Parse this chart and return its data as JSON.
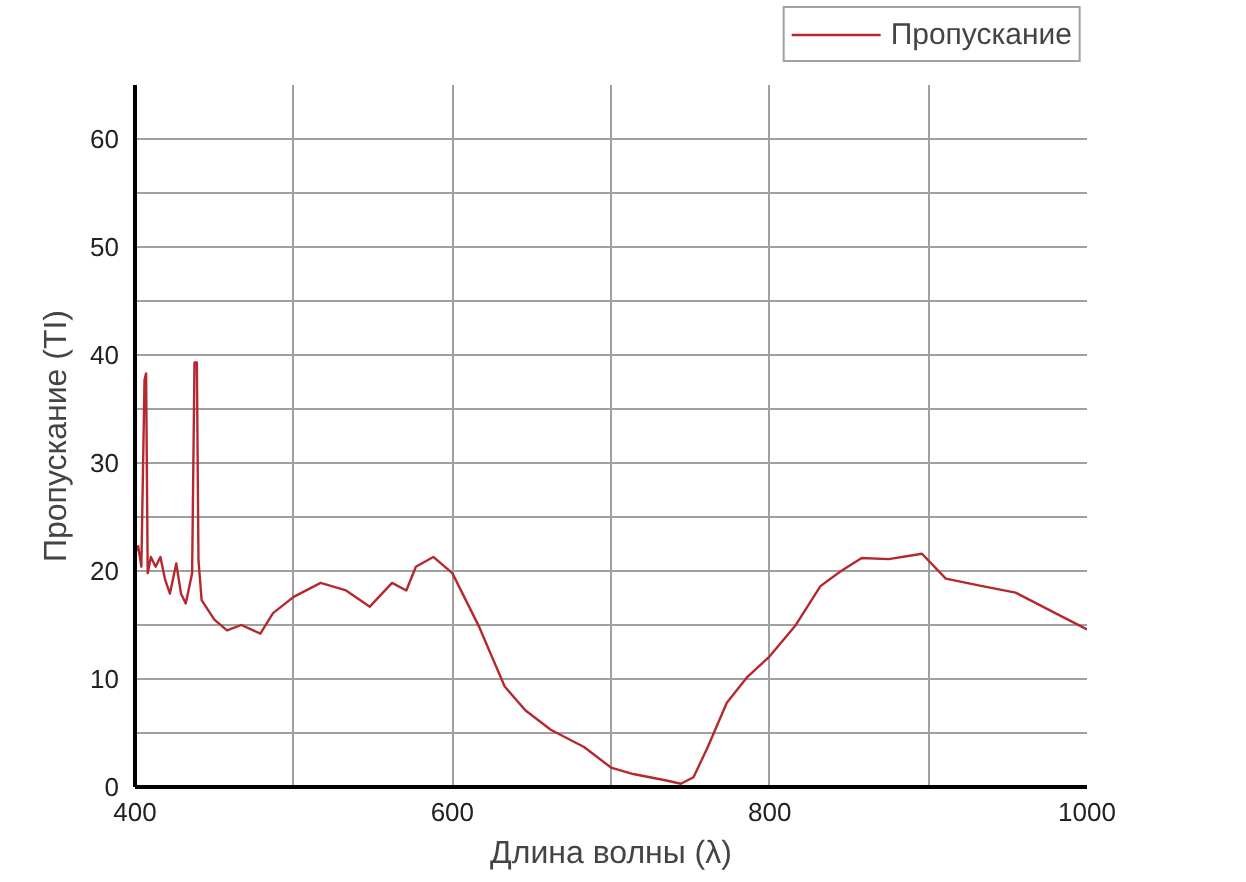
{
  "chart_data": {
    "type": "line",
    "xlabel": "Длина волны (λ)",
    "ylabel": "Пропускание (TI)",
    "xlim": [
      400,
      1000
    ],
    "ylim": [
      0,
      65
    ],
    "xticks": [
      400,
      {
        "value": 500,
        "label": null
      },
      600,
      {
        "value": 700,
        "label": null
      },
      800,
      {
        "value": 900,
        "label": null
      },
      1000
    ],
    "yticks": [
      0,
      {
        "value": 5,
        "label": null
      },
      10,
      {
        "value": 15,
        "label": null
      },
      20,
      {
        "value": 25,
        "label": null
      },
      30,
      {
        "value": 35,
        "label": null
      },
      40,
      {
        "value": 45,
        "label": null
      },
      50,
      {
        "value": 55,
        "label": null
      },
      60
    ],
    "grid": true,
    "legend": "top right",
    "marker": "none",
    "line_style": "solid",
    "series": [
      {
        "name": "Пропускание",
        "color": "#b5292e",
        "x": [
          400,
          402,
          404,
          406,
          407,
          408,
          410,
          413,
          416,
          419,
          422,
          426,
          429,
          432,
          436,
          437.5,
          439,
          440,
          442,
          450,
          458,
          467,
          479,
          487,
          500,
          517,
          533,
          548,
          562,
          571,
          577,
          588,
          600,
          617,
          633,
          646,
          662,
          683,
          700,
          714,
          735,
          744,
          752,
          761,
          773,
          786,
          800,
          816,
          832,
          845,
          858,
          875,
          896,
          911,
          934,
          955,
          980,
          1000
        ],
        "values": [
          21.6,
          22.3,
          20.4,
          37.7,
          38.3,
          19.8,
          21.3,
          20.4,
          21.3,
          19.2,
          17.9,
          20.7,
          17.9,
          17.0,
          19.8,
          39.3,
          39.3,
          21,
          17.3,
          15.5,
          14.5,
          15,
          14.2,
          16.1,
          17.6,
          18.9,
          18.2,
          16.7,
          18.9,
          18.2,
          20.4,
          21.3,
          19.8,
          14.8,
          9.3,
          7.1,
          5.3,
          3.7,
          1.8,
          1.2,
          0.6,
          0.3,
          0.9,
          3.7,
          7.8,
          10.2,
          12.1,
          14.9,
          18.6,
          20,
          21.2,
          21.1,
          21.6,
          19.3,
          18.6,
          18,
          16.1,
          14.6
        ]
      }
    ]
  }
}
